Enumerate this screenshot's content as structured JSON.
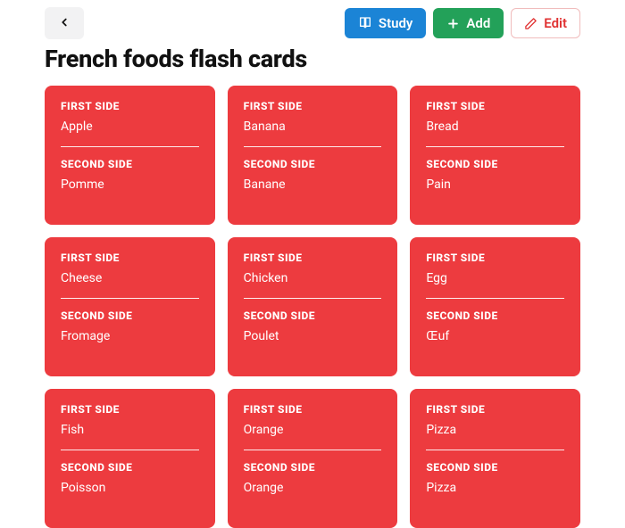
{
  "header": {
    "title": "French foods flash cards",
    "buttons": {
      "study": "Study",
      "add": "Add",
      "edit": "Edit"
    }
  },
  "labels": {
    "first_side": "FIRST SIDE",
    "second_side": "SECOND SIDE"
  },
  "colors": {
    "card_bg": "#ed3b3f",
    "study_btn": "#1b84d6",
    "add_btn": "#23a159",
    "edit_text": "#e03131",
    "edit_border": "#f0bcbc",
    "back_btn_bg": "#f2f2f3",
    "page_bg": "#ffffff",
    "title_color": "#111111"
  },
  "cards": [
    {
      "first": "Apple",
      "second": "Pomme"
    },
    {
      "first": "Banana",
      "second": "Banane"
    },
    {
      "first": "Bread",
      "second": "Pain"
    },
    {
      "first": "Cheese",
      "second": "Fromage"
    },
    {
      "first": "Chicken",
      "second": "Poulet"
    },
    {
      "first": "Egg",
      "second": "Œuf"
    },
    {
      "first": "Fish",
      "second": "Poisson"
    },
    {
      "first": "Orange",
      "second": "Orange"
    },
    {
      "first": "Pizza",
      "second": "Pizza"
    }
  ]
}
